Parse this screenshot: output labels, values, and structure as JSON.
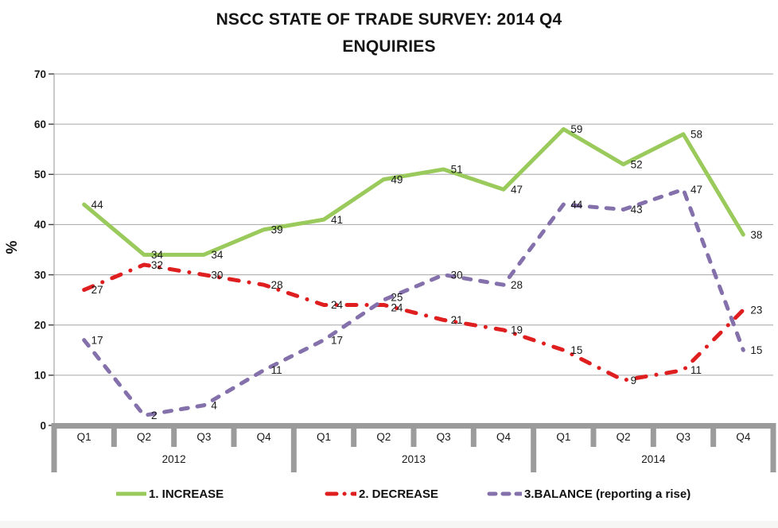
{
  "title": "NSCC STATE OF TRADE SURVEY: 2014 Q4",
  "subtitle": "ENQUIRIES",
  "chart_data": {
    "type": "line",
    "title": "NSCC STATE OF TRADE SURVEY: 2014 Q4",
    "subtitle": "ENQUIRIES",
    "ylabel": "%",
    "xlabel": "",
    "ylim": [
      0,
      70
    ],
    "ytick_step": 10,
    "grid": true,
    "legend_position": "bottom",
    "categories": [
      "Q1",
      "Q2",
      "Q3",
      "Q4",
      "Q1",
      "Q2",
      "Q3",
      "Q4",
      "Q1",
      "Q2",
      "Q3",
      "Q4"
    ],
    "year_groups": [
      {
        "label": "2012",
        "span": 4
      },
      {
        "label": "2013",
        "span": 4
      },
      {
        "label": "2014",
        "span": 4
      }
    ],
    "series": [
      {
        "name": "1. INCREASE",
        "color": "#9aca5c",
        "dash": "solid",
        "values": [
          44,
          34,
          34,
          39,
          41,
          49,
          51,
          47,
          59,
          52,
          58,
          38
        ]
      },
      {
        "name": "2. DECREASE",
        "color": "#df1f1f",
        "dash": "dash-dot",
        "values": [
          27,
          32,
          30,
          28,
          24,
          24,
          21,
          19,
          15,
          9,
          11,
          23
        ]
      },
      {
        "name": "3.BALANCE (reporting a rise)",
        "color": "#8470ab",
        "dash": "dash",
        "values": [
          17,
          2,
          4,
          11,
          17,
          25,
          30,
          28,
          44,
          43,
          47,
          15
        ]
      }
    ],
    "colors": {
      "gridline": "#a6a6a6",
      "axis_line": "#a6a6a6",
      "tick": "#404040",
      "category_bar": "#9b9b9b",
      "text": "#1a1a1a"
    }
  }
}
